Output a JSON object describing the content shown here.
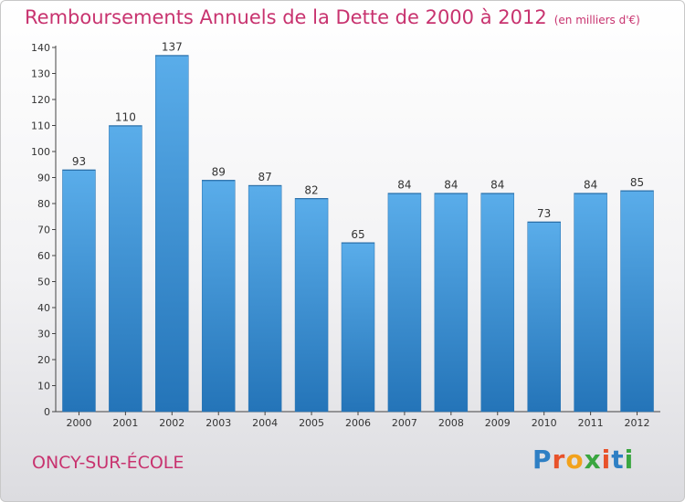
{
  "header": {
    "title": "Remboursements Annuels de la Dette de 2000 à 2012",
    "unit": "(en milliers d'€)"
  },
  "footer": {
    "city": "ONCY-SUR-ÉCOLE",
    "logo_letters": [
      "P",
      "r",
      "o",
      "x",
      "i",
      "t",
      "i"
    ],
    "logo_colors": [
      "#2e7fc4",
      "#e8522a",
      "#f2a21c",
      "#3aa640",
      "#e8522a",
      "#2e7fc4",
      "#3aa640"
    ]
  },
  "colors": {
    "title": "#c8336f",
    "bar_light": "#5aadea",
    "bar_dark": "#2474b8"
  },
  "chart_data": {
    "type": "bar",
    "title": "Remboursements Annuels de la Dette de 2000 à 2012",
    "categories": [
      "2000",
      "2001",
      "2002",
      "2003",
      "2004",
      "2005",
      "2006",
      "2007",
      "2008",
      "2009",
      "2010",
      "2011",
      "2012"
    ],
    "values": [
      93,
      110,
      137,
      89,
      87,
      82,
      65,
      84,
      84,
      84,
      73,
      84,
      85
    ],
    "ylim": [
      0,
      140
    ],
    "yticks": [
      0,
      10,
      20,
      30,
      40,
      50,
      60,
      70,
      80,
      90,
      100,
      110,
      120,
      130,
      140
    ],
    "grid": false,
    "data_labels": true
  }
}
